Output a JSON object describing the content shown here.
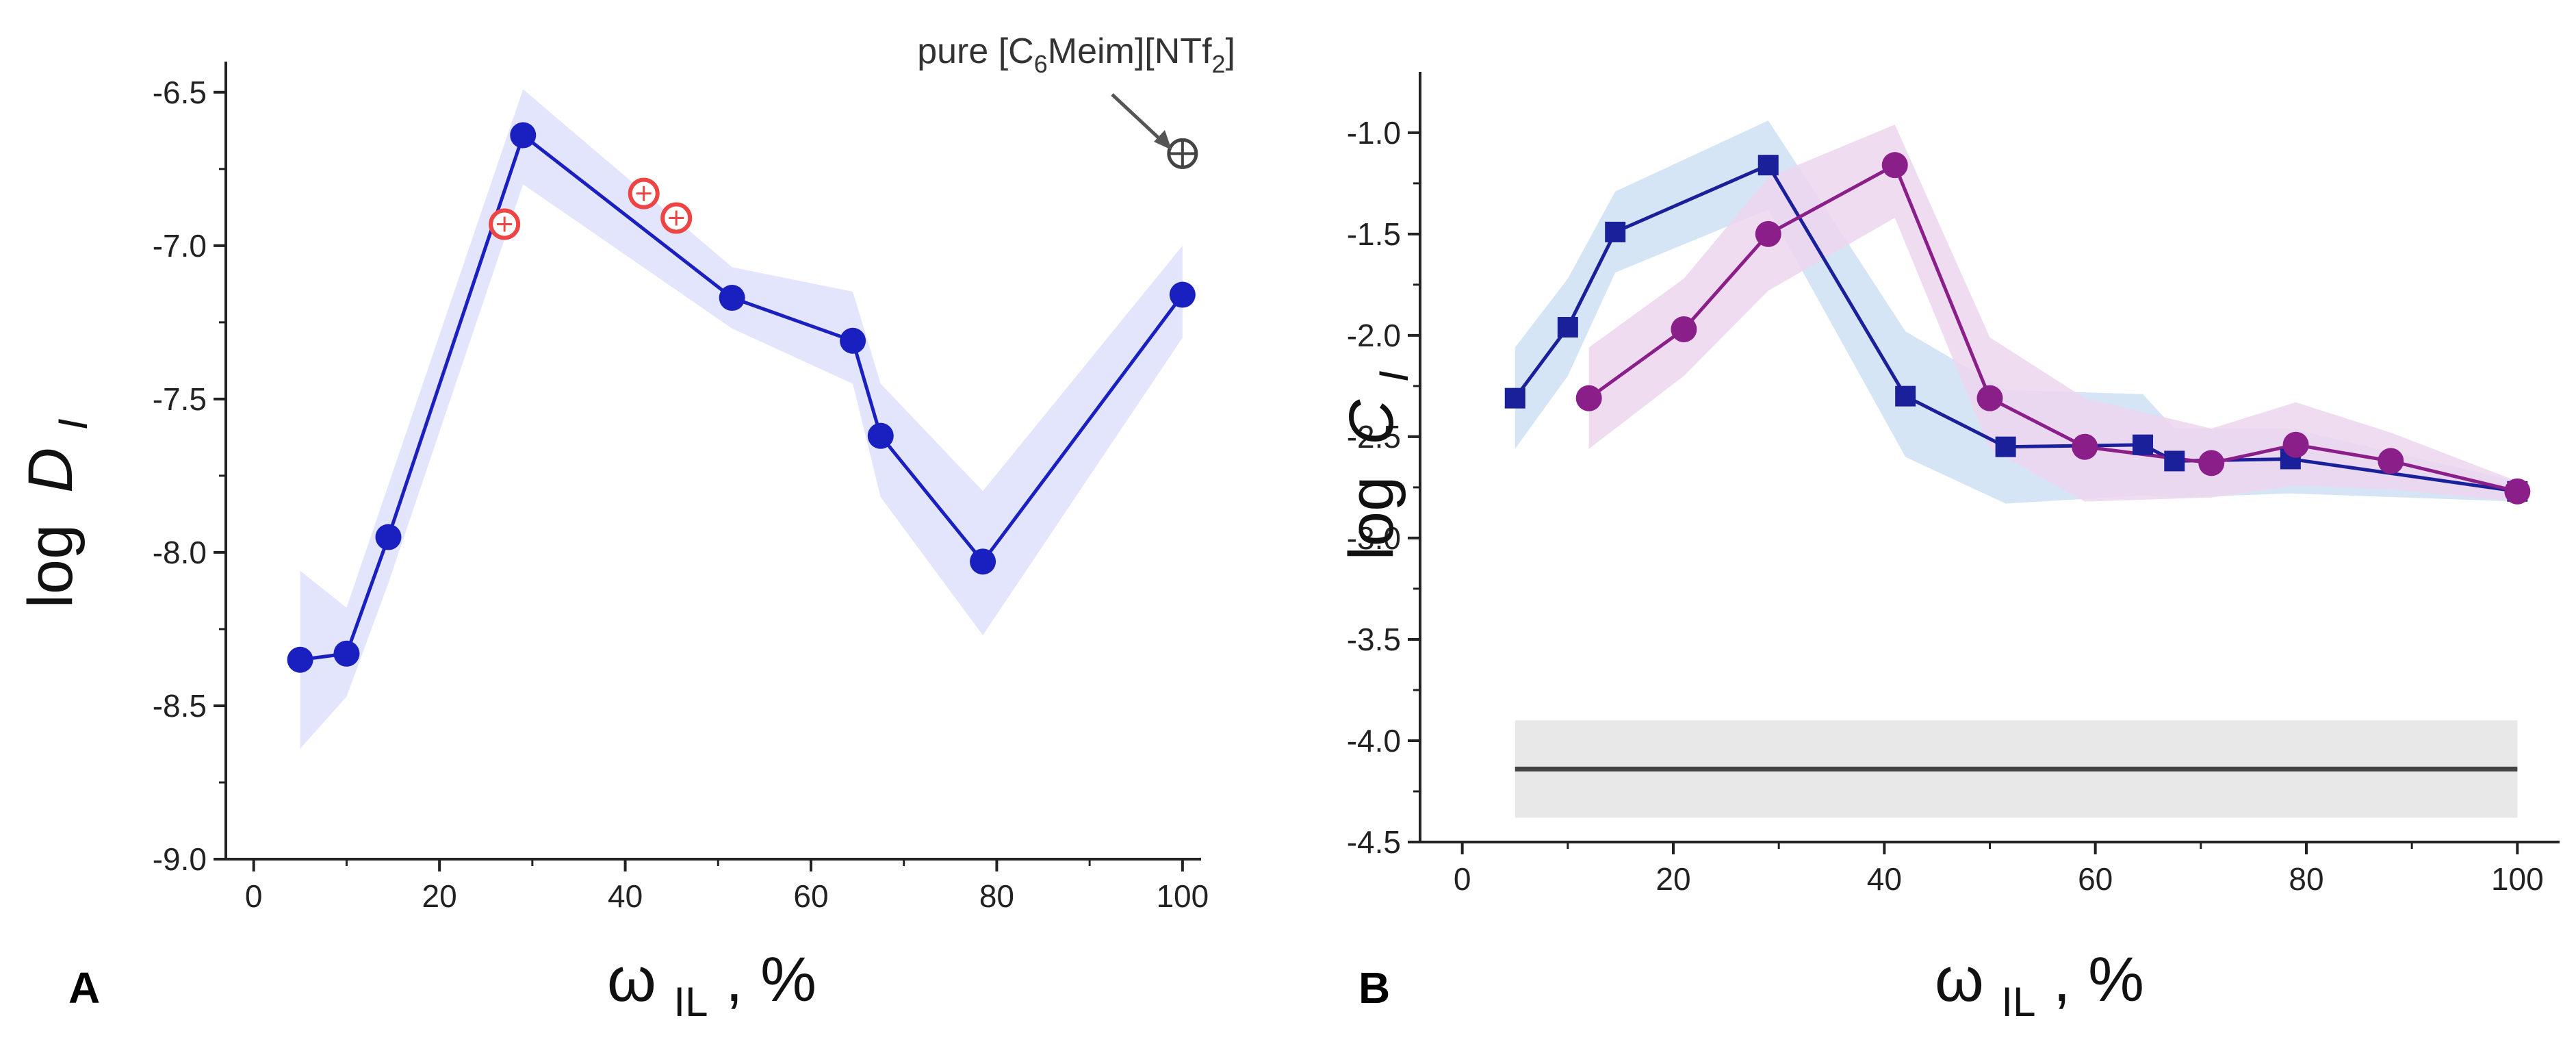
{
  "chart_data": [
    {
      "type": "line",
      "panel_label": "A",
      "ylabel_main": "log",
      "ylabel_var": "D",
      "ylabel_sub": "I",
      "xlabel_main": "ω",
      "xlabel_sub": "IL",
      "xlabel_unit": ", %",
      "xlim": [
        -3,
        102
      ],
      "ylim": [
        -9.0,
        -6.4
      ],
      "xticks": [
        0,
        20,
        40,
        60,
        80,
        100
      ],
      "yticks": [
        -9.0,
        -8.5,
        -8.0,
        -7.5,
        -7.0,
        -6.5
      ],
      "ytick_labels": [
        "-9.0",
        "-8.5",
        "-8.0",
        "-7.5",
        "-7.0",
        "-6.5"
      ],
      "xtick_labels": [
        "0",
        "20",
        "40",
        "60",
        "80",
        "100"
      ],
      "series": [
        {
          "color": "#1a1fc0",
          "band_color": "#dde1fb",
          "marker": "circle",
          "x": [
            5,
            10,
            14.5,
            29,
            51.5,
            64.5,
            67.5,
            78.5,
            100
          ],
          "y": [
            -8.35,
            -8.33,
            -7.95,
            -6.64,
            -7.17,
            -7.31,
            -7.62,
            -8.03,
            -7.16
          ],
          "band_upper": [
            -8.06,
            -8.18,
            -7.78,
            -6.49,
            -7.07,
            -7.15,
            -7.45,
            -7.8,
            -7.0
          ],
          "band_lower": [
            -8.64,
            -8.47,
            -8.1,
            -6.8,
            -7.27,
            -7.45,
            -7.82,
            -8.27,
            -7.3
          ]
        }
      ],
      "extra_points": {
        "color": "#ee4444",
        "x": [
          27,
          42,
          45.5
        ],
        "y": [
          -6.93,
          -6.83,
          -6.91
        ]
      },
      "pure_point": {
        "x": 100,
        "y": -6.7,
        "color": "#444444"
      },
      "annotation": {
        "text_prefix": "pure [C",
        "sub1": "6",
        "text_mid": "Meim][NTf",
        "sub2": "2",
        "text_suffix": "]"
      }
    },
    {
      "type": "line",
      "panel_label": "B",
      "ylabel_main": "log",
      "ylabel_var": "C",
      "ylabel_sub": "I",
      "xlabel_main": "ω",
      "xlabel_sub": "IL",
      "xlabel_unit": ", %",
      "xlim": [
        -4,
        104
      ],
      "ylim": [
        -4.5,
        -0.7
      ],
      "xticks": [
        0,
        20,
        40,
        60,
        80,
        100
      ],
      "yticks": [
        -4.5,
        -4.0,
        -3.5,
        -3.0,
        -2.5,
        -2.0,
        -1.5,
        -1.0
      ],
      "ytick_labels": [
        "-4.5",
        "-4.0",
        "-3.5",
        "-3.0",
        "-2.5",
        "-2.0",
        "-1.5",
        "-1.0"
      ],
      "xtick_labels": [
        "0",
        "20",
        "40",
        "60",
        "80",
        "100"
      ],
      "series": [
        {
          "color": "#1a1f9a",
          "band_color": "#cfe0f3",
          "marker": "square",
          "x": [
            5,
            10,
            14.5,
            29,
            42,
            51.5,
            64.5,
            67.5,
            78.5,
            100
          ],
          "y": [
            -2.31,
            -1.96,
            -1.49,
            -1.16,
            -2.3,
            -2.55,
            -2.54,
            -2.62,
            -2.61,
            -2.77
          ],
          "band_upper": [
            -2.06,
            -1.72,
            -1.29,
            -0.94,
            -1.98,
            -2.27,
            -2.29,
            -2.46,
            -2.46,
            -2.72
          ],
          "band_lower": [
            -2.56,
            -2.2,
            -1.69,
            -1.38,
            -2.6,
            -2.83,
            -2.79,
            -2.8,
            -2.78,
            -2.82
          ]
        },
        {
          "color": "#8a1f8a",
          "band_color": "#ecd6ef",
          "marker": "circle",
          "x": [
            12,
            21,
            29,
            41,
            50,
            59,
            71,
            79,
            88,
            100
          ],
          "y": [
            -2.31,
            -1.97,
            -1.5,
            -1.16,
            -2.31,
            -2.55,
            -2.63,
            -2.54,
            -2.62,
            -2.77
          ],
          "band_upper": [
            -2.06,
            -1.72,
            -1.22,
            -0.96,
            -2.01,
            -2.31,
            -2.46,
            -2.33,
            -2.48,
            -2.72
          ],
          "band_lower": [
            -2.56,
            -2.2,
            -1.78,
            -1.42,
            -2.56,
            -2.82,
            -2.8,
            -2.74,
            -2.76,
            -2.82
          ]
        }
      ],
      "reference_line": {
        "color": "#444444",
        "band_color": "#e8e8e8",
        "x": [
          5,
          100
        ],
        "y": -4.14,
        "band_upper": -3.9,
        "band_lower": -4.38
      }
    }
  ]
}
